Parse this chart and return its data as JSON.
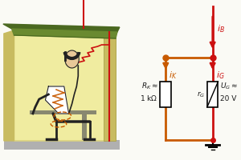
{
  "bg_color": "#fafaf5",
  "shelter_fill": "#f0eca0",
  "shelter_roof_fill": "#6a8a30",
  "shelter_roof_dark": "#4a6820",
  "shelter_wall_color": "#c8bb60",
  "shelter_wall_dark": "#a09840",
  "ground_fill": "#b0b0b0",
  "circuit_red": "#cc1111",
  "circuit_orange": "#c85a00",
  "resistor_fill": "white",
  "text_orange": "#c85a00",
  "text_red": "#cc1111",
  "text_black": "#1a1a1a",
  "person_skin": "#e8c898",
  "person_body": "#ffffff",
  "person_outline": "#222222",
  "bench_color": "#888870"
}
